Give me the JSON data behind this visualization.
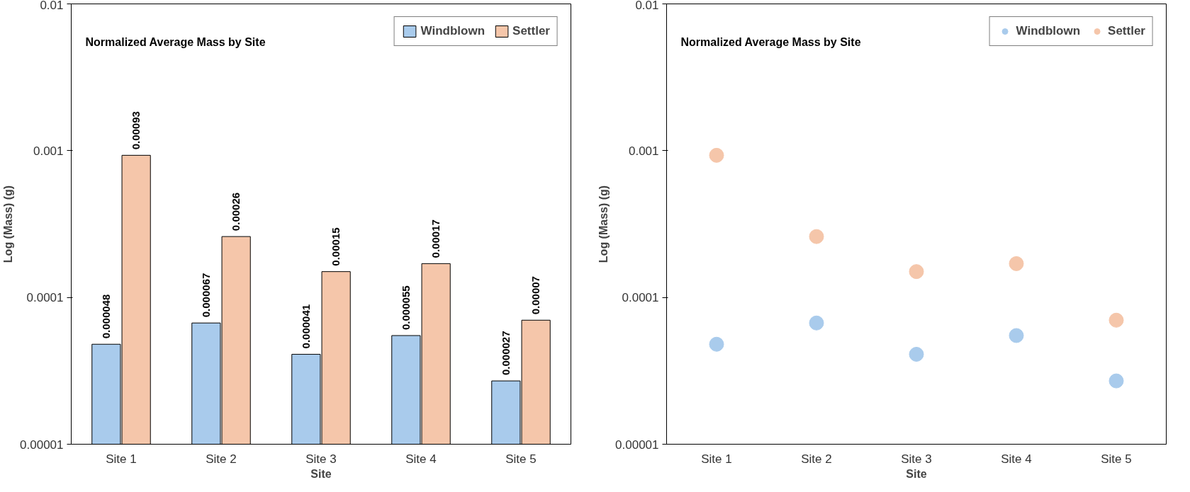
{
  "chart_data": [
    {
      "type": "bar",
      "title": "Normalized Average Mass  by Site",
      "xlabel": "Site",
      "ylabel": "Log (Mass) (g)",
      "categories": [
        "Site 1",
        "Site 2",
        "Site 3",
        "Site 4",
        "Site 5"
      ],
      "series": [
        {
          "name": "Windblown",
          "color": "#a9cbec",
          "values": [
            4.8e-05,
            6.7e-05,
            4.1e-05,
            5.5e-05,
            2.7e-05
          ],
          "value_labels": [
            "0.000048",
            "0.000067",
            "0.000041",
            "0.000055",
            "0.000027"
          ]
        },
        {
          "name": "Settler",
          "color": "#f5c6aa",
          "values": [
            0.00093,
            0.00026,
            0.00015,
            0.00017,
            7e-05
          ],
          "value_labels": [
            "0.00093",
            "0.00026",
            "0.00015",
            "0.00017",
            "0.00007"
          ]
        }
      ],
      "log": true,
      "ylim": [
        1e-05,
        0.01
      ],
      "yticks": [
        {
          "value": 1e-05,
          "label": "0.00001"
        },
        {
          "value": 0.0001,
          "label": "0.0001"
        },
        {
          "value": 0.001,
          "label": "0.001"
        },
        {
          "value": 0.01,
          "label": "0.01"
        }
      ],
      "legend": "top right",
      "grid": false
    },
    {
      "type": "scatter",
      "title": "Normalized Average Mass  by Site",
      "xlabel": "Site",
      "ylabel": "Log (Mass) (g)",
      "categories": [
        "Site 1",
        "Site 2",
        "Site 3",
        "Site 4",
        "Site 5"
      ],
      "series": [
        {
          "name": "Windblown",
          "color": "#a9cbec",
          "values": [
            4.8e-05,
            6.7e-05,
            4.1e-05,
            5.5e-05,
            2.7e-05
          ]
        },
        {
          "name": "Settler",
          "color": "#f5c6aa",
          "values": [
            0.00093,
            0.00026,
            0.00015,
            0.00017,
            7e-05
          ]
        }
      ],
      "log": true,
      "ylim": [
        1e-05,
        0.01
      ],
      "yticks": [
        {
          "value": 1e-05,
          "label": "0.00001"
        },
        {
          "value": 0.0001,
          "label": "0.0001"
        },
        {
          "value": 0.001,
          "label": "0.001"
        },
        {
          "value": 0.01,
          "label": "0.01"
        }
      ],
      "marker": "circle",
      "legend": "top right",
      "grid": false
    }
  ]
}
